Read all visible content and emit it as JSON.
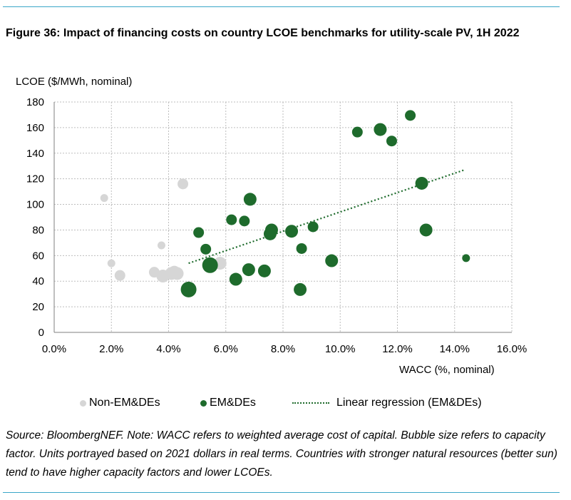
{
  "figure": {
    "title": "Figure 36: Impact of financing costs on country LCOE benchmarks for utility-scale PV, 1H 2022",
    "source": "Source: BloombergNEF. Note: WACC refers to weighted average cost of capital. Bubble size refers to capacity factor. Units portrayed based on 2021 dollars in real terms. Countries with stronger natural resources (better sun) tend to have higher capacity factors and lower LCOEs."
  },
  "colors": {
    "non_em": "#d6d6d6",
    "em": "#1e6b2c",
    "regression": "#1e6b2c",
    "grid": "#bdbdbd",
    "rule": "#3aa6c8"
  },
  "chart_data": {
    "type": "scatter",
    "title": "Figure 36: Impact of financing costs on country LCOE benchmarks for utility-scale PV, 1H 2022",
    "xlabel": "WACC (%, nominal)",
    "ylabel": "LCOE ($/MWh, nominal)",
    "xlim": [
      0,
      16
    ],
    "ylim": [
      0,
      180
    ],
    "x_ticks": [
      0,
      2,
      4,
      6,
      8,
      10,
      12,
      14,
      16
    ],
    "x_tick_labels": [
      "0.0%",
      "2.0%",
      "4.0%",
      "6.0%",
      "8.0%",
      "10.0%",
      "12.0%",
      "14.0%",
      "16.0%"
    ],
    "y_ticks": [
      0,
      20,
      40,
      60,
      80,
      100,
      120,
      140,
      160,
      180
    ],
    "y_tick_labels": [
      "0",
      "20",
      "40",
      "60",
      "80",
      "100",
      "120",
      "140",
      "160",
      "180"
    ],
    "grid": true,
    "legend_position": "bottom",
    "series": [
      {
        "name": "Non-EM&DEs",
        "points": [
          {
            "x": 1.75,
            "y": 105,
            "size": 1
          },
          {
            "x": 2.0,
            "y": 54,
            "size": 1
          },
          {
            "x": 2.3,
            "y": 44.5,
            "size": 2
          },
          {
            "x": 3.5,
            "y": 47,
            "size": 2
          },
          {
            "x": 3.75,
            "y": 68,
            "size": 1
          },
          {
            "x": 3.8,
            "y": 44,
            "size": 3
          },
          {
            "x": 4.1,
            "y": 46,
            "size": 3
          },
          {
            "x": 4.2,
            "y": 47,
            "size": 3
          },
          {
            "x": 4.3,
            "y": 46,
            "size": 3
          },
          {
            "x": 4.5,
            "y": 116,
            "size": 2
          },
          {
            "x": 5.8,
            "y": 54,
            "size": 3
          }
        ]
      },
      {
        "name": "EM&DEs",
        "points": [
          {
            "x": 4.7,
            "y": 33.5,
            "size": 4
          },
          {
            "x": 5.05,
            "y": 78,
            "size": 2
          },
          {
            "x": 5.3,
            "y": 65,
            "size": 2
          },
          {
            "x": 5.45,
            "y": 52.5,
            "size": 4
          },
          {
            "x": 6.2,
            "y": 88,
            "size": 2
          },
          {
            "x": 6.35,
            "y": 41.5,
            "size": 3
          },
          {
            "x": 6.65,
            "y": 87,
            "size": 2
          },
          {
            "x": 6.8,
            "y": 49,
            "size": 3
          },
          {
            "x": 6.85,
            "y": 104,
            "size": 3
          },
          {
            "x": 7.35,
            "y": 48,
            "size": 3
          },
          {
            "x": 7.55,
            "y": 77,
            "size": 3
          },
          {
            "x": 7.6,
            "y": 80,
            "size": 3
          },
          {
            "x": 8.3,
            "y": 79,
            "size": 3
          },
          {
            "x": 8.6,
            "y": 33.5,
            "size": 3
          },
          {
            "x": 8.65,
            "y": 65.5,
            "size": 2
          },
          {
            "x": 9.05,
            "y": 82.5,
            "size": 2
          },
          {
            "x": 9.7,
            "y": 56,
            "size": 3
          },
          {
            "x": 10.6,
            "y": 156.5,
            "size": 2
          },
          {
            "x": 11.4,
            "y": 158.5,
            "size": 3
          },
          {
            "x": 11.8,
            "y": 149.5,
            "size": 2
          },
          {
            "x": 12.45,
            "y": 169.5,
            "size": 2
          },
          {
            "x": 12.85,
            "y": 116.5,
            "size": 3
          },
          {
            "x": 13.0,
            "y": 80,
            "size": 3
          },
          {
            "x": 14.4,
            "y": 58,
            "size": 1
          }
        ]
      },
      {
        "name": "Linear regression (EM&DEs)",
        "line": [
          {
            "x": 4.7,
            "y": 54
          },
          {
            "x": 14.35,
            "y": 127
          }
        ]
      }
    ]
  },
  "legend": {
    "non_em_label": "Non-EM&DEs",
    "em_label": "EM&DEs",
    "regression_label": "Linear regression (EM&DEs)"
  }
}
